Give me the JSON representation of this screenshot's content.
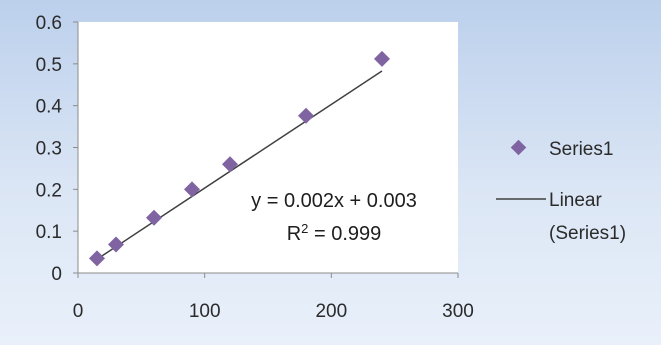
{
  "chart_data": {
    "type": "scatter",
    "x": [
      15,
      30,
      60,
      90,
      120,
      180,
      240
    ],
    "series": [
      {
        "name": "Series1",
        "x": [
          15,
          30,
          60,
          90,
          120,
          180,
          240
        ],
        "values": [
          0.035,
          0.068,
          0.132,
          0.2,
          0.26,
          0.376,
          0.512
        ]
      }
    ],
    "trendline": {
      "name": "Linear (Series1)",
      "slope": 0.002,
      "intercept": 0.003,
      "x_range": [
        15,
        240
      ],
      "equation": "y = 0.002x + 0.003",
      "r_squared": "0.999"
    },
    "xlim": [
      0,
      300
    ],
    "ylim": [
      0,
      0.6
    ],
    "x_ticks": [
      "0",
      "100",
      "200",
      "300"
    ],
    "y_ticks": [
      "0",
      "0.1",
      "0.2",
      "0.3",
      "0.4",
      "0.5",
      "0.6"
    ],
    "grid": false,
    "legend_position": "right",
    "legend": {
      "marker_label": "Series1",
      "line_label_line1": "Linear",
      "line_label_line2": "(Series1)"
    },
    "colors": {
      "marker": "#8064a2",
      "trendline": "#404040",
      "plot_background": "#ffffff",
      "axis": "#8c8c8c"
    }
  }
}
